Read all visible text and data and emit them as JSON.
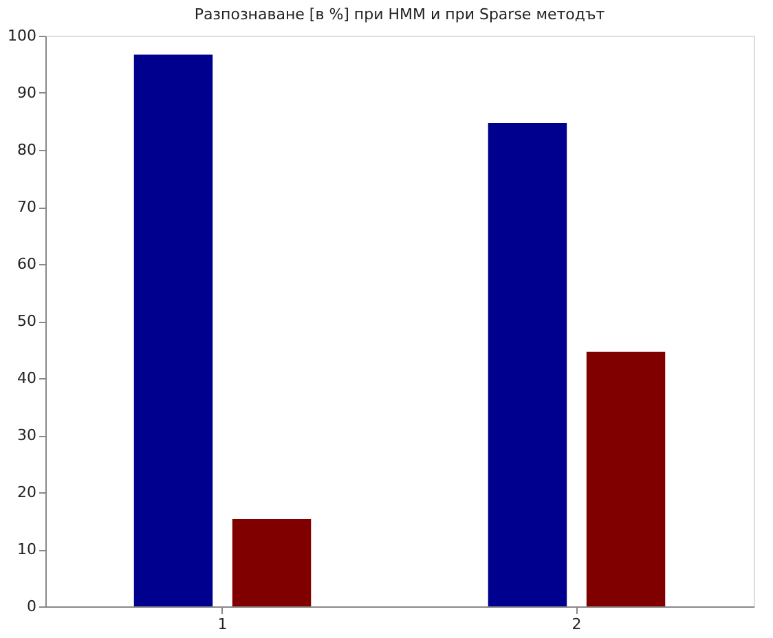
{
  "chart_data": {
    "type": "bar",
    "title": "Разпознаване [в %] при HMM и при  Sparse методът",
    "categories": [
      "1",
      "2"
    ],
    "series": [
      {
        "color": "#00008f",
        "values": [
          96.7,
          84.7
        ]
      },
      {
        "color": "#800000",
        "values": [
          15.3,
          44.6
        ]
      }
    ],
    "ylim": [
      0,
      100
    ],
    "yticks": [
      0,
      10,
      20,
      30,
      40,
      50,
      60,
      70,
      80,
      90,
      100
    ],
    "grid": false,
    "legend": false
  }
}
